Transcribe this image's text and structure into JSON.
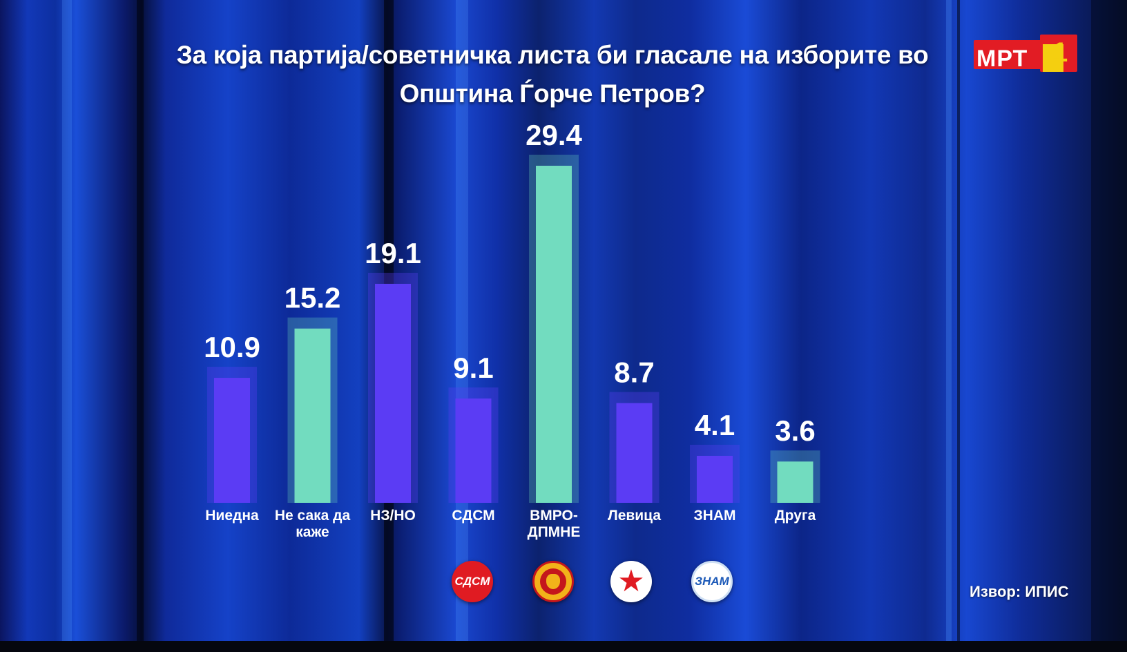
{
  "title": {
    "line1": "За која партија/советничка листа би гласале на изборите во",
    "line2": "Општина Ѓорче Петров?"
  },
  "logo": {
    "text": "МРТ",
    "number": "1"
  },
  "chart_data": {
    "type": "bar",
    "title": "За која партија/советничка листа би гласале на изборите во Општина Ѓорче Петров?",
    "categories": [
      [
        "Ниедна"
      ],
      [
        "Не сака да",
        "каже"
      ],
      [
        "НЗ/НО"
      ],
      [
        "СДСМ"
      ],
      [
        "ВМРО-",
        "ДПМНЕ"
      ],
      [
        "Левица"
      ],
      [
        "ЗНАМ"
      ],
      [
        "Друга"
      ]
    ],
    "values": [
      10.9,
      15.2,
      19.1,
      9.1,
      29.4,
      8.7,
      4.1,
      3.6
    ],
    "value_labels": [
      "10.9",
      "15.2",
      "19.1",
      "9.1",
      "29.4",
      "8.7",
      "4.1",
      "3.6"
    ],
    "bar_colors": [
      "#5b3cf4",
      "#72dcbf",
      "#5b3cf4",
      "#5b3cf4",
      "#72dcbf",
      "#5b3cf4",
      "#5b3cf4",
      "#72dcbf"
    ],
    "ylim": [
      0,
      30
    ],
    "grid": false,
    "legend": "none"
  },
  "party_logos": {
    "sdsm": "СДСМ",
    "vmro": "vmro-dpmne-lion-icon",
    "levica": "levica-star-icon",
    "znam": "ЗНАМ"
  },
  "source": "Извор: ИПИС"
}
